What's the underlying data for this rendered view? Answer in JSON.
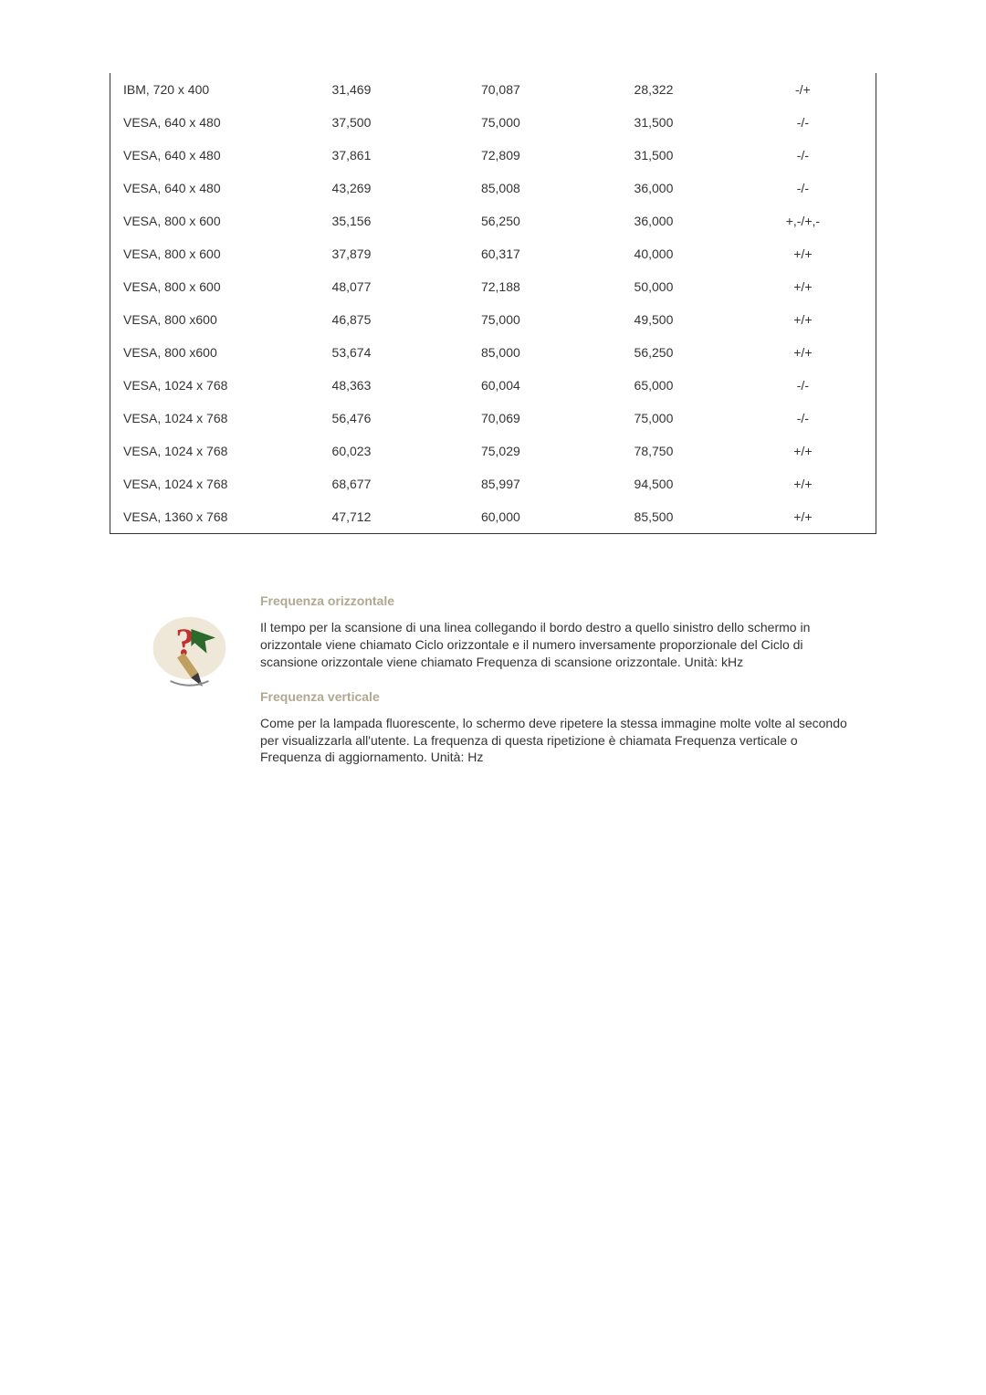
{
  "table": {
    "rows": [
      [
        "IBM, 720 x 400",
        "31,469",
        "70,087",
        "28,322",
        "-/+"
      ],
      [
        "VESA, 640 x 480",
        "37,500",
        "75,000",
        "31,500",
        "-/-"
      ],
      [
        "VESA, 640 x 480",
        "37,861",
        "72,809",
        "31,500",
        "-/-"
      ],
      [
        "VESA, 640 x 480",
        "43,269",
        "85,008",
        "36,000",
        "-/-"
      ],
      [
        "VESA, 800 x 600",
        "35,156",
        "56,250",
        "36,000",
        "+,-/+,-"
      ],
      [
        "VESA, 800 x 600",
        "37,879",
        "60,317",
        "40,000",
        "+/+"
      ],
      [
        "VESA, 800 x 600",
        "48,077",
        "72,188",
        "50,000",
        "+/+"
      ],
      [
        "VESA, 800 x600",
        "46,875",
        "75,000",
        "49,500",
        "+/+"
      ],
      [
        "VESA, 800 x600",
        "53,674",
        "85,000",
        "56,250",
        "+/+"
      ],
      [
        "VESA, 1024 x 768",
        "48,363",
        "60,004",
        "65,000",
        "-/-"
      ],
      [
        "VESA, 1024 x 768",
        "56,476",
        "70,069",
        "75,000",
        "-/-"
      ],
      [
        "VESA, 1024 x 768",
        "60,023",
        "75,029",
        "78,750",
        "+/+"
      ],
      [
        "VESA, 1024 x 768",
        "68,677",
        "85,997",
        "94,500",
        "+/+"
      ],
      [
        "VESA, 1360 x 768",
        "47,712",
        "60,000",
        "85,500",
        "+/+"
      ]
    ]
  },
  "info": {
    "heading1": "Frequenza orizzontale",
    "text1": "Il tempo per la scansione di una linea collegando il bordo destro a quello sinistro dello schermo in orizzontale viene chiamato Ciclo orizzontale e il numero inversamente proporzionale del Ciclo di scansione orizzontale viene chiamato Frequenza di scansione orizzontale. Unità: kHz",
    "heading2": "Frequenza verticale",
    "text2": "Come per la lampada fluorescente, lo schermo deve ripetere la stessa immagine molte volte al secondo per visualizzarla all'utente. La frequenza di questa ripetizione è chiamata Frequenza verticale o Frequenza di aggiornamento. Unità: Hz",
    "icon_bg": "#efe8d8",
    "question_color": "#c03030",
    "arrow_color": "#2a6a2a",
    "pen_nib": "#3a3a3a",
    "pen_grip": "#c0a060"
  }
}
